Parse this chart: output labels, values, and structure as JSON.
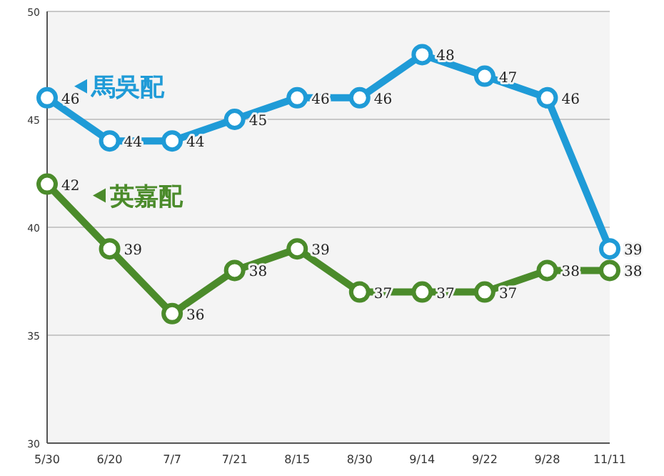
{
  "chart_data": {
    "type": "line",
    "categories": [
      "5/30",
      "6/20",
      "7/7",
      "7/21",
      "8/15",
      "8/30",
      "9/14",
      "9/22",
      "9/28",
      "11/11"
    ],
    "series": [
      {
        "name": "馬吳配",
        "color": "#1f9bd7",
        "values": [
          46,
          44,
          44,
          45,
          46,
          46,
          48,
          47,
          46,
          39
        ]
      },
      {
        "name": "英嘉配",
        "color": "#4b8b2b",
        "values": [
          42,
          39,
          36,
          38,
          39,
          37,
          37,
          37,
          38,
          38
        ]
      }
    ],
    "ylim": [
      30,
      50
    ],
    "yticks": [
      30,
      35,
      40,
      45,
      50
    ],
    "grid": "y",
    "marker": "circle",
    "data_labels": true,
    "legend": "top left"
  }
}
